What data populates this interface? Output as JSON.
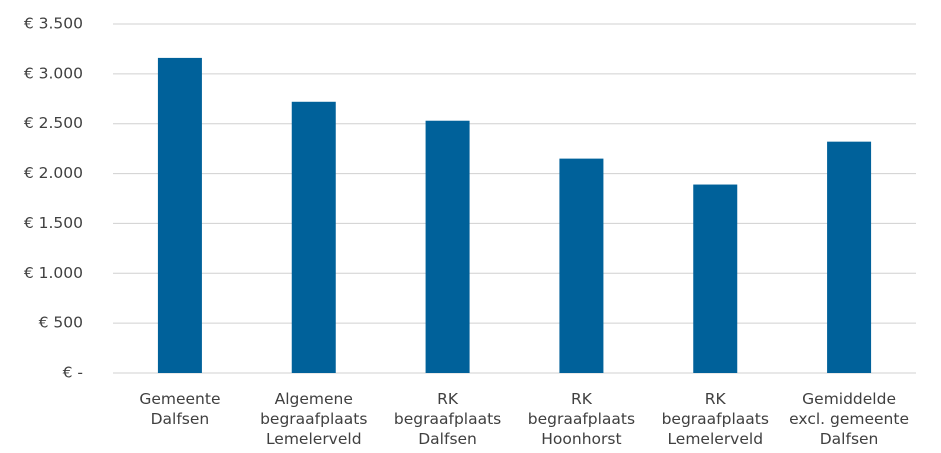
{
  "chart_data": {
    "type": "bar",
    "categories": [
      "Gemeente Dalfsen",
      "Algemene begraafplaats Lemelerveld",
      "RK begraafplaats Dalfsen",
      "RK begraafplaats Hoonhorst",
      "RK begraafplaats Lemelerveld",
      "Gemiddelde excl. gemeente Dalfsen"
    ],
    "values": [
      3160,
      2720,
      2530,
      2150,
      1890,
      2320
    ],
    "color": "#00619a",
    "ylim": [
      0,
      3500
    ],
    "yticks": [
      {
        "value": 0,
        "label": "€ -"
      },
      {
        "value": 500,
        "label": "€ 500"
      },
      {
        "value": 1000,
        "label": "€ 1.000"
      },
      {
        "value": 1500,
        "label": "€ 1.500"
      },
      {
        "value": 2000,
        "label": "€ 2.000"
      },
      {
        "value": 2500,
        "label": "€ 2.500"
      },
      {
        "value": 3000,
        "label": "€ 3.000"
      },
      {
        "value": 3500,
        "label": "€ 3.500"
      }
    ],
    "grid": true
  }
}
